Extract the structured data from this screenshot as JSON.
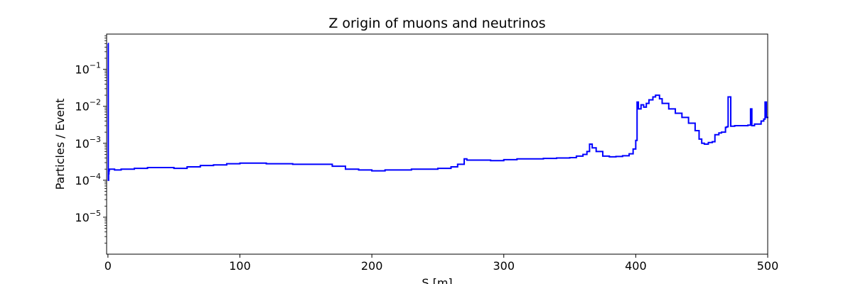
{
  "chart_data": {
    "type": "line",
    "title": "Z origin of muons and neutrinos",
    "xlabel": "S [m]",
    "ylabel": "Particles / Event",
    "xlim": [
      -1,
      500
    ],
    "ylim": [
      1e-06,
      0.9
    ],
    "yscale": "log",
    "grid": false,
    "xticks": [
      {
        "value": 0,
        "label": "0"
      },
      {
        "value": 100,
        "label": "100"
      },
      {
        "value": 200,
        "label": "200"
      },
      {
        "value": 300,
        "label": "300"
      },
      {
        "value": 400,
        "label": "400"
      },
      {
        "value": 500,
        "label": "500"
      }
    ],
    "yticks": [
      {
        "value": 1e-05,
        "base": "10",
        "exp": "−5"
      },
      {
        "value": 0.0001,
        "base": "10",
        "exp": "−4"
      },
      {
        "value": 0.001,
        "base": "10",
        "exp": "−3"
      },
      {
        "value": 0.01,
        "base": "10",
        "exp": "−2"
      },
      {
        "value": 0.1,
        "base": "10",
        "exp": "−1"
      }
    ],
    "series": [
      {
        "color": "#0000ff",
        "x": [
          0,
          0.25,
          0.5,
          0.75,
          1,
          2,
          5,
          10,
          20,
          30,
          40,
          50,
          60,
          70,
          80,
          90,
          100,
          110,
          120,
          130,
          140,
          150,
          160,
          170,
          180,
          190,
          200,
          210,
          220,
          230,
          240,
          250,
          260,
          265,
          270,
          272,
          280,
          290,
          300,
          310,
          320,
          330,
          340,
          350,
          355,
          360,
          363,
          365,
          367,
          370,
          375,
          380,
          385,
          390,
          395,
          398,
          400,
          401,
          402,
          404,
          406,
          408,
          410,
          413,
          415,
          418,
          420,
          425,
          430,
          435,
          440,
          445,
          448,
          450,
          452,
          455,
          458,
          460,
          463,
          465,
          468,
          469,
          470,
          472,
          475,
          480,
          485,
          487,
          488,
          490,
          495,
          497,
          498,
          499,
          500
        ],
        "y": [
          0.5,
          0.0001,
          0.00015,
          0.00018,
          0.0002,
          0.0002,
          0.00019,
          0.0002,
          0.00021,
          0.00022,
          0.00022,
          0.00021,
          0.00023,
          0.00025,
          0.00026,
          0.00028,
          0.00029,
          0.00029,
          0.00028,
          0.00028,
          0.00027,
          0.00027,
          0.00027,
          0.00024,
          0.0002,
          0.00019,
          0.00018,
          0.00019,
          0.00019,
          0.0002,
          0.0002,
          0.00021,
          0.00023,
          0.00027,
          0.00038,
          0.00035,
          0.00035,
          0.00034,
          0.00036,
          0.00038,
          0.00038,
          0.00039,
          0.0004,
          0.00041,
          0.00045,
          0.0005,
          0.0006,
          0.00095,
          0.00075,
          0.0006,
          0.00045,
          0.00043,
          0.00044,
          0.00046,
          0.00052,
          0.0007,
          0.0012,
          0.013,
          0.0085,
          0.011,
          0.0095,
          0.012,
          0.015,
          0.018,
          0.02,
          0.016,
          0.012,
          0.0085,
          0.0065,
          0.005,
          0.0035,
          0.0022,
          0.0013,
          0.001,
          0.00095,
          0.00105,
          0.0011,
          0.0017,
          0.0019,
          0.002,
          0.0027,
          0.0028,
          0.018,
          0.0029,
          0.003,
          0.003,
          0.0031,
          0.0085,
          0.003,
          0.0033,
          0.004,
          0.0045,
          0.013,
          0.005,
          0.0052
        ]
      }
    ]
  }
}
